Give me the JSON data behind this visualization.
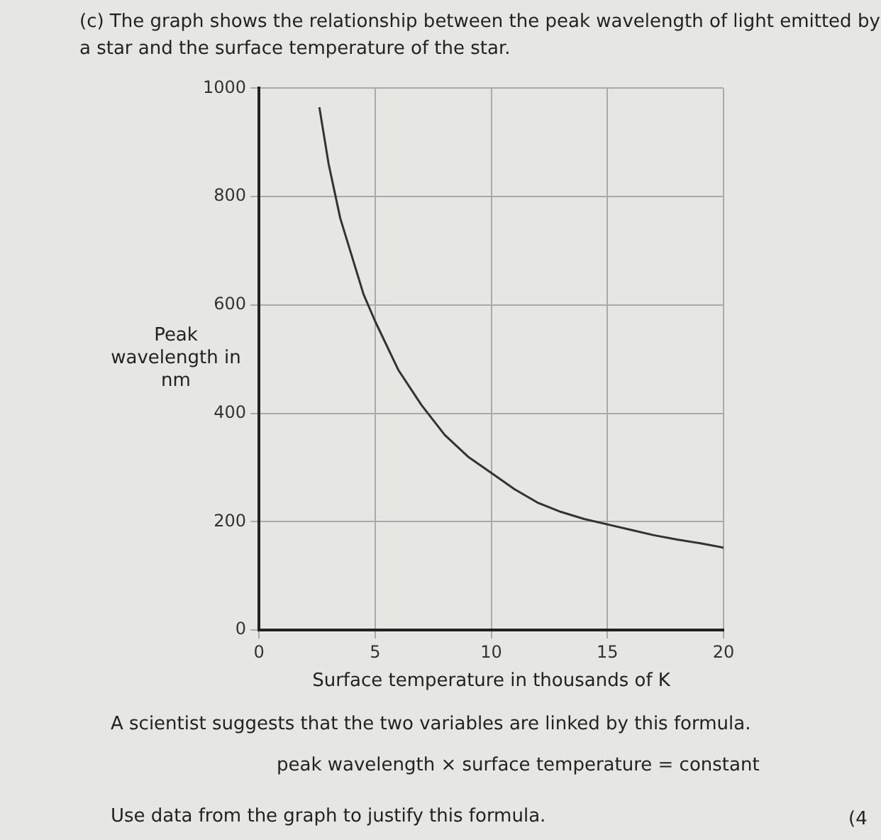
{
  "chart_data": {
    "type": "line",
    "title": "(c) The graph shows the relationship between the peak wavelength of light emitted by a star and the surface temperature of the star.",
    "xlabel": "Surface temperature in thousands of K",
    "ylabel": "Peak wavelength in nm",
    "x": [
      2.6,
      3,
      3.5,
      4,
      4.5,
      5,
      6,
      7,
      8,
      9,
      10,
      11,
      12,
      13,
      14,
      15,
      16,
      17,
      18,
      19,
      20
    ],
    "series": [
      {
        "color": "#333333",
        "values": [
          965,
          860,
          760,
          690,
          620,
          570,
          480,
          415,
          360,
          320,
          290,
          260,
          235,
          218,
          205,
          195,
          185,
          175,
          167,
          160,
          152
        ]
      }
    ],
    "xlim": [
      0,
      20
    ],
    "xticks": [
      0,
      5,
      10,
      15,
      20
    ],
    "ylim": [
      0,
      1000
    ],
    "yticks": [
      0,
      200,
      400,
      600,
      800,
      1000
    ],
    "grid": true,
    "marker": "none",
    "line_style": "solid",
    "annotations": [
      "A scientist suggests that the two variables are linked by this formula.",
      "peak wavelength × surface temperature = constant",
      "Use data from the graph to justify this formula.",
      "(4"
    ]
  }
}
